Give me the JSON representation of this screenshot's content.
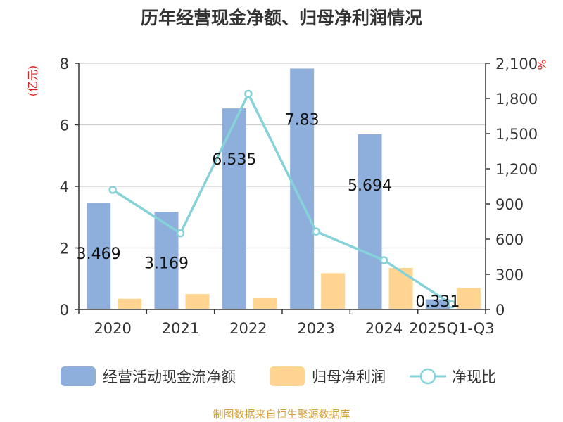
{
  "title": "历年经营现金净额、归母净利润情况",
  "source": "制图数据来自恒生聚源数据库",
  "chart_data": {
    "type": "bar",
    "categories": [
      "2020",
      "2021",
      "2022",
      "2023",
      "2024",
      "2025Q1-Q3"
    ],
    "series": [
      {
        "name": "经营活动现金流净额",
        "type": "bar",
        "axis": "left",
        "color": "#8eaedb",
        "values": [
          3.469,
          3.169,
          6.535,
          7.83,
          5.694,
          0.331
        ]
      },
      {
        "name": "归母净利润",
        "type": "bar",
        "axis": "left",
        "color": "#ffd591",
        "values": [
          0.35,
          0.5,
          0.37,
          1.18,
          1.35,
          0.7
        ]
      },
      {
        "name": "净现比",
        "type": "line",
        "axis": "right",
        "color": "#85d3d9",
        "values": [
          1020,
          650,
          1840,
          665,
          420,
          45
        ]
      }
    ],
    "data_labels": [
      "3.469",
      "3.169",
      "6.535",
      "7.83",
      "5.694",
      "0.331"
    ],
    "y_left": {
      "label": "(亿元)",
      "min": 0,
      "max": 8,
      "ticks": [
        "0",
        "2",
        "4",
        "6",
        "8"
      ]
    },
    "y_right": {
      "label": "%",
      "min": 0,
      "max": 2100,
      "ticks": [
        "0",
        "300",
        "600",
        "900",
        "1,200",
        "1,500",
        "1,800",
        "2,100"
      ]
    },
    "grid": true,
    "legend": "bottom"
  }
}
